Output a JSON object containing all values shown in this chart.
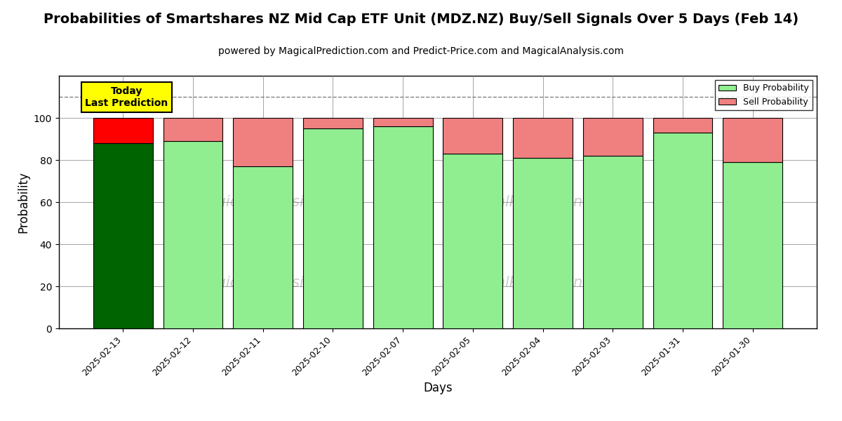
{
  "title": "Probabilities of Smartshares NZ Mid Cap ETF Unit (MDZ.NZ) Buy/Sell Signals Over 5 Days (Feb 14)",
  "subtitle": "powered by MagicalPrediction.com and Predict-Price.com and MagicalAnalysis.com",
  "xlabel": "Days",
  "ylabel": "Probability",
  "categories": [
    "2025-02-13",
    "2025-02-12",
    "2025-02-11",
    "2025-02-10",
    "2025-02-07",
    "2025-02-05",
    "2025-02-04",
    "2025-02-03",
    "2025-01-31",
    "2025-01-30"
  ],
  "buy_values": [
    88,
    89,
    77,
    95,
    96,
    83,
    81,
    82,
    93,
    79
  ],
  "sell_values": [
    12,
    11,
    23,
    5,
    4,
    17,
    19,
    18,
    7,
    21
  ],
  "buy_colors": [
    "#006400",
    "#90EE90",
    "#90EE90",
    "#90EE90",
    "#90EE90",
    "#90EE90",
    "#90EE90",
    "#90EE90",
    "#90EE90",
    "#90EE90"
  ],
  "sell_colors": [
    "#FF0000",
    "#F08080",
    "#F08080",
    "#F08080",
    "#F08080",
    "#F08080",
    "#F08080",
    "#F08080",
    "#F08080",
    "#F08080"
  ],
  "today_label": "Today\nLast Prediction",
  "today_label_bg": "#FFFF00",
  "legend_buy_color": "#90EE90",
  "legend_sell_color": "#F08080",
  "legend_buy_label": "Buy Probability",
  "legend_sell_label": "Sell Probability",
  "dashed_line_y": 110,
  "ylim": [
    0,
    120
  ],
  "yticks": [
    0,
    20,
    40,
    60,
    80,
    100
  ],
  "bg_color": "#FFFFFF",
  "title_fontsize": 14,
  "subtitle_fontsize": 10,
  "bar_edge_color": "#000000",
  "bar_width": 0.85,
  "watermark_color": "#CCCCCC"
}
